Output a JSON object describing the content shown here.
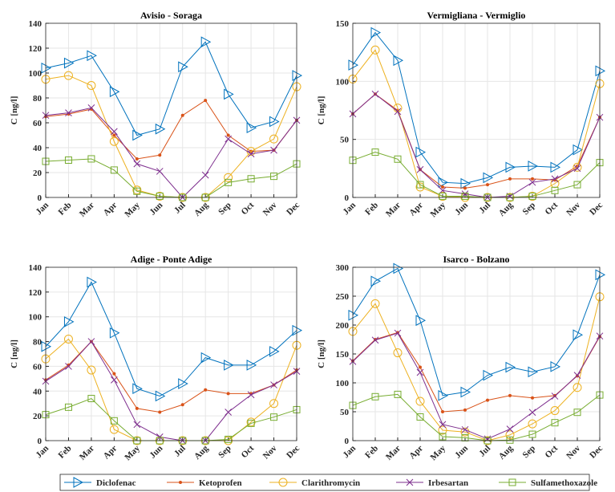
{
  "chart_data": [
    {
      "type": "line",
      "title": "Avisio - Soraga",
      "ylabel": "C [ng/l]",
      "categories": [
        "Jan",
        "Feb",
        "Mar",
        "Apr",
        "May",
        "Jun",
        "Jul",
        "Aug",
        "Sep",
        "Oct",
        "Nov",
        "Dec"
      ],
      "ylim": [
        0,
        140
      ],
      "yticks": [
        0,
        20,
        40,
        60,
        80,
        100,
        120,
        140
      ],
      "grid": true,
      "series": [
        {
          "name": "Diclofenac",
          "color": "#0072bd",
          "marker": "triangle-right",
          "values": [
            104,
            108,
            114,
            85,
            50,
            55,
            105,
            125,
            83,
            56,
            61,
            98
          ]
        },
        {
          "name": "Ketoprofen",
          "color": "#d95319",
          "marker": "dot",
          "values": [
            65,
            67,
            71,
            50,
            31,
            34,
            66,
            78,
            50,
            37,
            38,
            62
          ]
        },
        {
          "name": "Clarithromycin",
          "color": "#edb120",
          "marker": "circle",
          "values": [
            95,
            98,
            90,
            45,
            6,
            1,
            0,
            0,
            16,
            37,
            47,
            89
          ]
        },
        {
          "name": "Irbesartan",
          "color": "#7e2f8e",
          "marker": "x",
          "values": [
            66,
            68,
            72,
            53,
            27,
            21,
            0,
            18,
            47,
            35,
            38,
            62
          ]
        },
        {
          "name": "Sulfamethoxazole",
          "color": "#77ac30",
          "marker": "square",
          "values": [
            29,
            30,
            31,
            22,
            5,
            1,
            0,
            0,
            12,
            15,
            17,
            27
          ]
        }
      ]
    },
    {
      "type": "line",
      "title": "Vermigliana - Vermiglio",
      "ylabel": "C [ng/l]",
      "categories": [
        "Jan",
        "Feb",
        "Mar",
        "Apr",
        "May",
        "Jun",
        "Jul",
        "Aug",
        "Sep",
        "Oct",
        "Nov",
        "Dec"
      ],
      "ylim": [
        0,
        150
      ],
      "yticks": [
        0,
        50,
        100,
        150
      ],
      "grid": true,
      "series": [
        {
          "name": "Diclofenac",
          "color": "#0072bd",
          "marker": "triangle-right",
          "values": [
            114,
            142,
            118,
            39,
            13,
            12,
            17,
            26,
            27,
            26,
            41,
            109
          ]
        },
        {
          "name": "Ketoprofen",
          "color": "#d95319",
          "marker": "dot",
          "values": [
            72,
            89,
            75,
            24,
            9,
            8,
            11,
            16,
            16,
            15,
            27,
            69
          ]
        },
        {
          "name": "Clarithromycin",
          "color": "#edb120",
          "marker": "circle",
          "values": [
            102,
            127,
            77,
            9,
            1,
            0,
            0,
            0,
            1,
            12,
            26,
            98
          ]
        },
        {
          "name": "Irbesartan",
          "color": "#7e2f8e",
          "marker": "x",
          "values": [
            72,
            89,
            74,
            24,
            6,
            3,
            0,
            1,
            13,
            16,
            25,
            69
          ]
        },
        {
          "name": "Sulfamethoxazole",
          "color": "#77ac30",
          "marker": "square",
          "values": [
            32,
            39,
            33,
            11,
            1,
            1,
            0,
            0,
            1,
            6,
            11,
            30
          ]
        }
      ]
    },
    {
      "type": "line",
      "title": "Adige - Ponte Adige",
      "ylabel": "C [ng/l]",
      "categories": [
        "Jan",
        "Feb",
        "Mar",
        "Apr",
        "May",
        "Jun",
        "Jul",
        "Aug",
        "Sep",
        "Oct",
        "Nov",
        "Dec"
      ],
      "ylim": [
        0,
        140
      ],
      "yticks": [
        0,
        20,
        40,
        60,
        80,
        100,
        120,
        140
      ],
      "grid": true,
      "series": [
        {
          "name": "Diclofenac",
          "color": "#0072bd",
          "marker": "triangle-right",
          "values": [
            76,
            96,
            128,
            87,
            42,
            36,
            46,
            67,
            61,
            61,
            72,
            89
          ]
        },
        {
          "name": "Ketoprofen",
          "color": "#d95319",
          "marker": "dot",
          "values": [
            49,
            61,
            80,
            54,
            26,
            23,
            29,
            41,
            38,
            38,
            45,
            57
          ]
        },
        {
          "name": "Clarithromycin",
          "color": "#edb120",
          "marker": "circle",
          "values": [
            66,
            82,
            57,
            9,
            0,
            0,
            0,
            0,
            0,
            15,
            30,
            77
          ]
        },
        {
          "name": "Irbesartan",
          "color": "#7e2f8e",
          "marker": "x",
          "values": [
            48,
            60,
            80,
            49,
            13,
            3,
            0,
            0,
            23,
            37,
            45,
            56
          ]
        },
        {
          "name": "Sulfamethoxazole",
          "color": "#77ac30",
          "marker": "square",
          "values": [
            21,
            27,
            34,
            16,
            0,
            0,
            0,
            0,
            1,
            14,
            19,
            25
          ]
        }
      ]
    },
    {
      "type": "line",
      "title": "Isarco - Bolzano",
      "ylabel": "C [ng/l]",
      "categories": [
        "Jan",
        "Feb",
        "Mar",
        "Apr",
        "May",
        "Jun",
        "Jul",
        "Aug",
        "Sep",
        "Oct",
        "Nov",
        "Dec"
      ],
      "ylim": [
        0,
        300
      ],
      "yticks": [
        0,
        50,
        100,
        150,
        200,
        250,
        300
      ],
      "grid": true,
      "series": [
        {
          "name": "Diclofenac",
          "color": "#0072bd",
          "marker": "triangle-right",
          "values": [
            217,
            276,
            298,
            208,
            78,
            84,
            113,
            127,
            119,
            128,
            183,
            287
          ]
        },
        {
          "name": "Ketoprofen",
          "color": "#d95319",
          "marker": "dot",
          "values": [
            138,
            175,
            187,
            127,
            50,
            53,
            70,
            78,
            74,
            78,
            112,
            180
          ]
        },
        {
          "name": "Clarithromycin",
          "color": "#edb120",
          "marker": "circle",
          "values": [
            189,
            237,
            152,
            68,
            18,
            15,
            0,
            10,
            29,
            52,
            92,
            249
          ]
        },
        {
          "name": "Irbesartan",
          "color": "#7e2f8e",
          "marker": "x",
          "values": [
            137,
            174,
            186,
            118,
            28,
            19,
            3,
            20,
            49,
            77,
            113,
            181
          ]
        },
        {
          "name": "Sulfamethoxazole",
          "color": "#77ac30",
          "marker": "square",
          "values": [
            61,
            76,
            80,
            41,
            7,
            5,
            0,
            1,
            11,
            31,
            49,
            79
          ]
        }
      ]
    }
  ]
}
